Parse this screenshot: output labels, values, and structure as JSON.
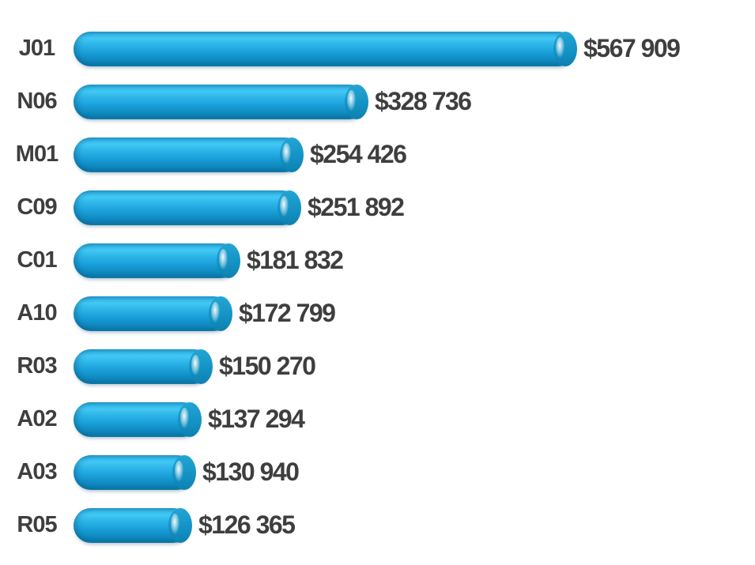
{
  "chart_data": {
    "type": "bar",
    "orientation": "horizontal",
    "title": "",
    "xlabel": "",
    "ylabel": "",
    "grid": false,
    "legend": false,
    "background_color": "#ffffff",
    "bar_style": "3d-cylinder",
    "bar_color": "#1fa9e0",
    "bar_highlight_color": "#41c8f4",
    "bar_shadow_color": "#0b79ab",
    "text_color": "#3e3e3e",
    "xlim": [
      0,
      567909
    ],
    "categories": [
      "J01",
      "N06",
      "M01",
      "C09",
      "C01",
      "A10",
      "R03",
      "A02",
      "A03",
      "R05"
    ],
    "values": [
      567909,
      328736,
      254426,
      251892,
      181832,
      172799,
      150270,
      137294,
      130940,
      126365
    ],
    "value_labels": [
      "$567 909",
      "$328 736",
      "$254 426",
      "$251 892",
      "$181 832",
      "$172 799",
      "$150 270",
      "$137 294",
      "$130 940",
      "$126 365"
    ]
  }
}
